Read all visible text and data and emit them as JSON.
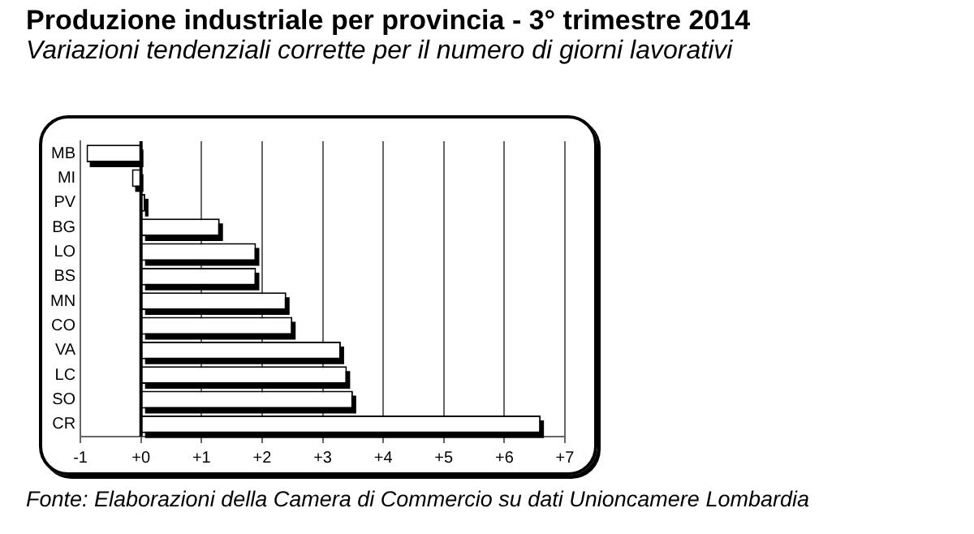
{
  "chart_data": {
    "type": "bar",
    "orientation": "horizontal",
    "title": "Produzione industriale per provincia - 3° trimestre 2014",
    "subtitle": "Variazioni tendenziali corrette per il numero di giorni lavorativi",
    "categories": [
      "MB",
      "MI",
      "PV",
      "BG",
      "LO",
      "BS",
      "MN",
      "CO",
      "VA",
      "LC",
      "SO",
      "CR"
    ],
    "values": [
      -0.9,
      -0.15,
      0.07,
      1.3,
      1.9,
      1.9,
      2.4,
      2.5,
      3.3,
      3.4,
      3.5,
      6.6
    ],
    "color": "#ffffff",
    "xlim": [
      -1,
      7
    ],
    "xticks": [
      -1,
      {
        "value": 0,
        "label": "+0"
      },
      {
        "value": 1,
        "label": "+1"
      },
      {
        "value": 2,
        "label": "+2"
      },
      {
        "value": 3,
        "label": "+3"
      },
      {
        "value": 4,
        "label": "+4"
      },
      {
        "value": 5,
        "label": "+5"
      },
      {
        "value": 6,
        "label": "+6"
      },
      {
        "value": 7,
        "label": "+7"
      }
    ],
    "grid": "x",
    "legend": false,
    "annotations": [
      "Fonte: Elaborazioni della Camera di Commercio su dati Unioncamere Lombardia"
    ]
  }
}
